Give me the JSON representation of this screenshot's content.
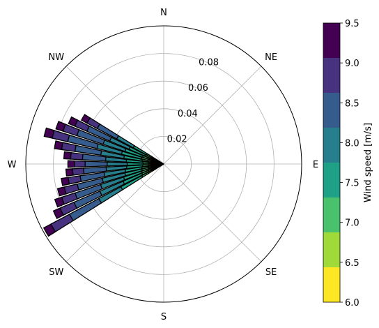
{
  "chart_data": {
    "type": "polar-stacked-bar",
    "directions": [
      "N",
      "NE",
      "E",
      "SE",
      "S",
      "SW",
      "W",
      "NW"
    ],
    "radial_ticks": [
      "0.02",
      "0.04",
      "0.06",
      "0.08"
    ],
    "radial_max": 0.1,
    "colorbar": {
      "label": "Wind speed [m/s]",
      "ticks": [
        "6.0",
        "6.5",
        "7.0",
        "7.5",
        "8.0",
        "8.5",
        "9.0",
        "9.5"
      ],
      "range": [
        6.0,
        9.5
      ]
    },
    "bin_colors": [
      "#fde725",
      "#a0da39",
      "#4ac16d",
      "#1fa187",
      "#277f8e",
      "#365c8d",
      "#46327e",
      "#440154"
    ],
    "sectors": [
      {
        "direction_deg": 240,
        "cumulative": [
          0.0072,
          0.0129,
          0.0179,
          0.0352,
          0.0533,
          0.0774,
          0.0926,
          0.0985
        ]
      },
      {
        "direction_deg": 245,
        "cumulative": [
          0.007,
          0.0121,
          0.0172,
          0.032,
          0.0503,
          0.0707,
          0.0816,
          0.0869
        ]
      },
      {
        "direction_deg": 250,
        "cumulative": [
          0.0068,
          0.0118,
          0.0168,
          0.0306,
          0.0481,
          0.0676,
          0.0778,
          0.083
        ]
      },
      {
        "direction_deg": 255,
        "cumulative": [
          0.0066,
          0.0114,
          0.0163,
          0.0289,
          0.0458,
          0.0644,
          0.074,
          0.079
        ]
      },
      {
        "direction_deg": 260,
        "cumulative": [
          0.0066,
          0.0112,
          0.016,
          0.0282,
          0.0437,
          0.0612,
          0.07,
          0.075
        ]
      },
      {
        "direction_deg": 265,
        "cumulative": [
          0.0063,
          0.0108,
          0.0154,
          0.027,
          0.0418,
          0.0582,
          0.0662,
          0.071
        ]
      },
      {
        "direction_deg": 270,
        "cumulative": [
          0.0062,
          0.0106,
          0.015,
          0.0265,
          0.041,
          0.057,
          0.0648,
          0.0695
        ]
      },
      {
        "direction_deg": 275,
        "cumulative": [
          0.0063,
          0.0108,
          0.0152,
          0.0272,
          0.0422,
          0.059,
          0.0676,
          0.0725
        ]
      },
      {
        "direction_deg": 280,
        "cumulative": [
          0.0065,
          0.0112,
          0.0159,
          0.0292,
          0.0461,
          0.065,
          0.0748,
          0.08
        ]
      },
      {
        "direction_deg": 285,
        "cumulative": [
          0.0068,
          0.0118,
          0.0168,
          0.0314,
          0.0497,
          0.0715,
          0.083,
          0.089
        ]
      },
      {
        "direction_deg": 290,
        "cumulative": [
          0.0065,
          0.0112,
          0.016,
          0.0295,
          0.0462,
          0.0662,
          0.0768,
          0.0822
        ]
      },
      {
        "direction_deg": 295,
        "cumulative": [
          0.0062,
          0.0105,
          0.015,
          0.0273,
          0.0425,
          0.0605,
          0.07,
          0.075
        ]
      },
      {
        "direction_deg": 300,
        "cumulative": [
          0.0058,
          0.0099,
          0.014,
          0.025,
          0.0386,
          0.0546,
          0.063,
          0.0676
        ]
      }
    ]
  }
}
